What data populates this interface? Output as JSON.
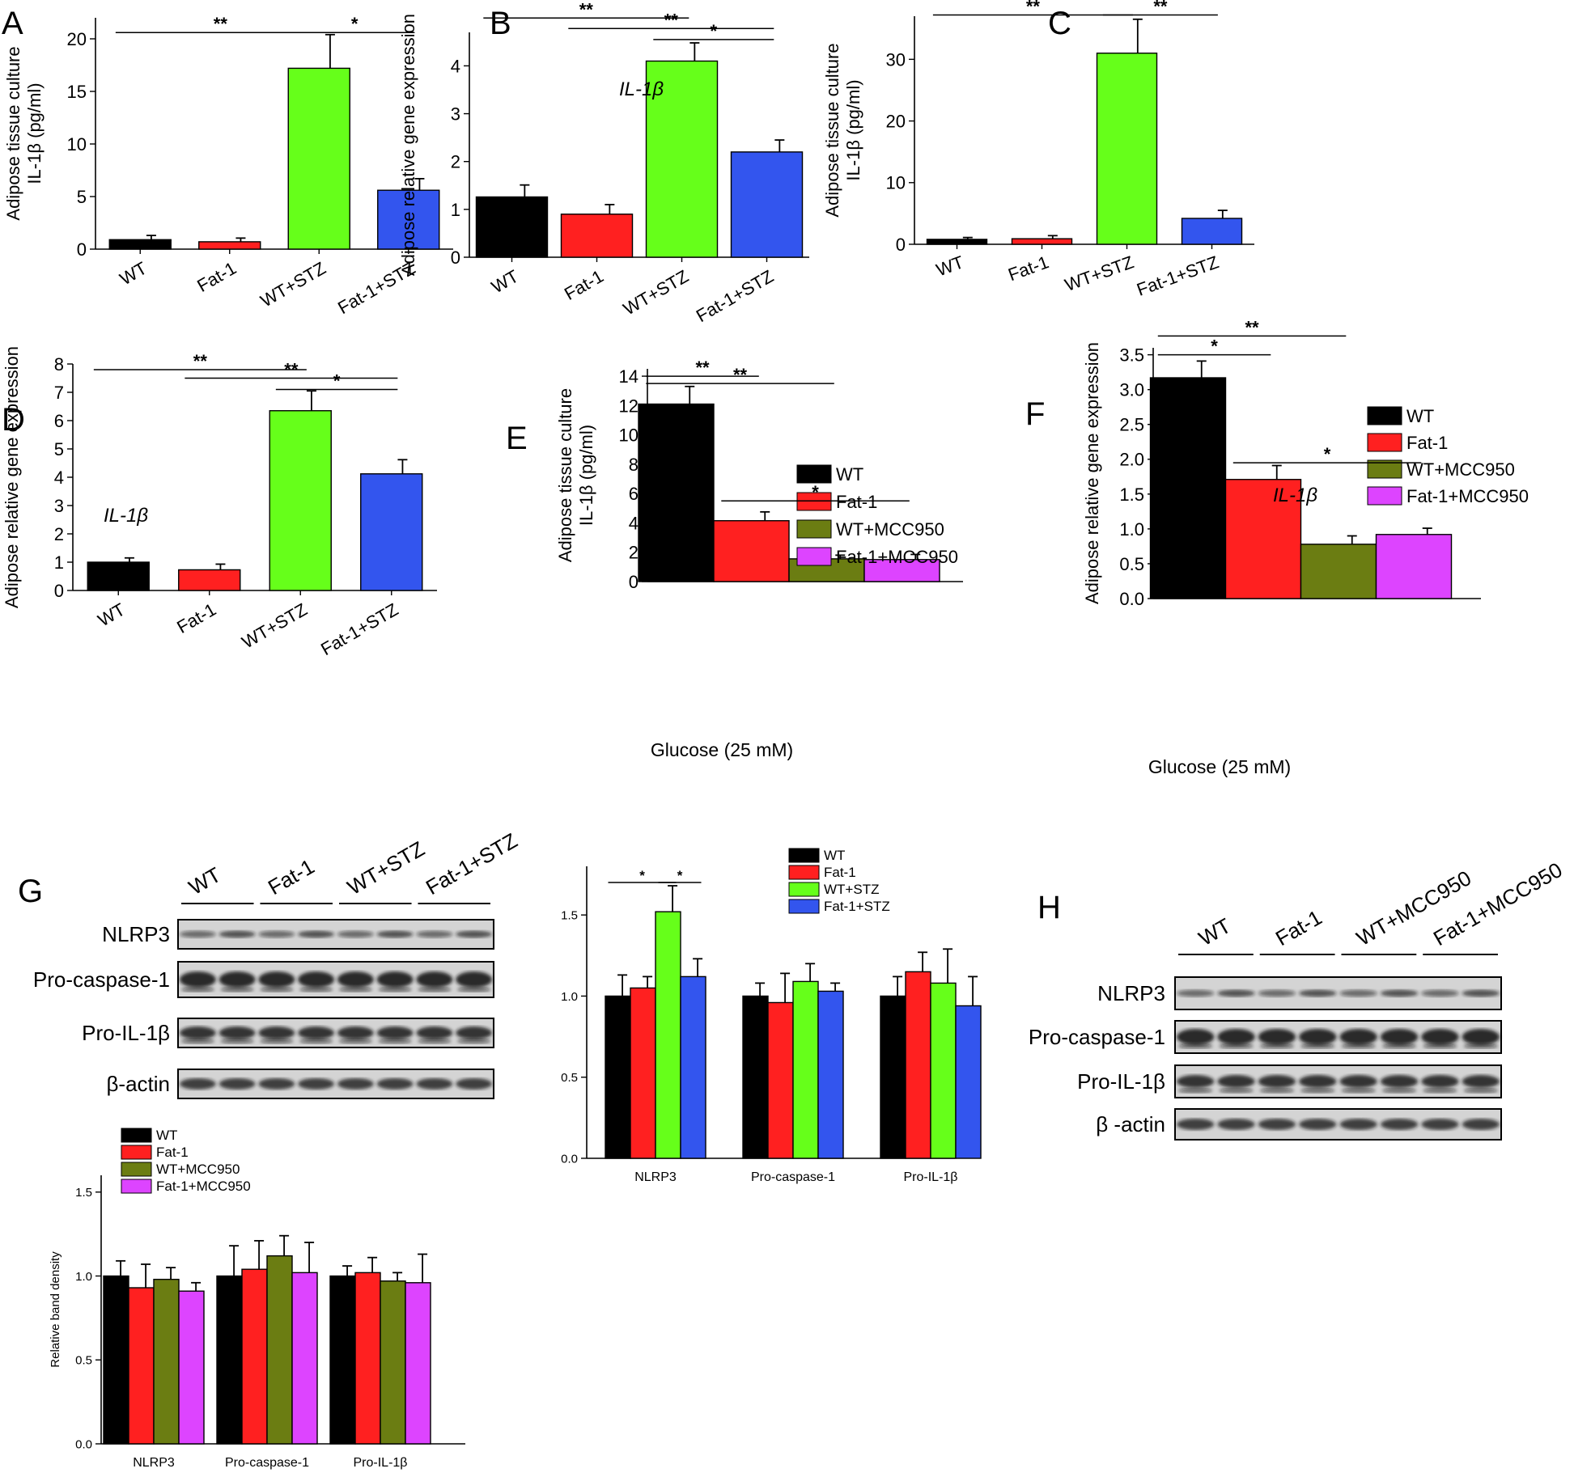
{
  "colors": {
    "WT": "#000000",
    "Fat-1": "#ff2020",
    "STZ": "#66ff1a",
    "Fat1STZ": "#3355ee",
    "MCC": "#6b7d12",
    "Fat1MCC": "#dd44ff"
  },
  "panels": {
    "A": "A",
    "B": "B",
    "C": "C",
    "D": "D",
    "E": "E",
    "F": "F",
    "G": "G",
    "H": "H"
  },
  "chart_data": [
    {
      "id": "A",
      "type": "bar",
      "ylabel": [
        "Adipose tissue culture",
        "IL-1β (pg/ml)"
      ],
      "ylim": [
        0,
        22
      ],
      "yticks": [
        0,
        5,
        10,
        15,
        20
      ],
      "categories": [
        "WT",
        "Fat-1",
        "WT+STZ",
        "Fat-1+STZ"
      ],
      "values": [
        0.9,
        0.7,
        17.2,
        5.6
      ],
      "errors": [
        0.4,
        0.35,
        3.2,
        1.1
      ],
      "colors": [
        "WT",
        "Fat-1",
        "STZ",
        "Fat1STZ"
      ],
      "signif": [
        {
          "from": 0,
          "to": 2,
          "y": 20.6,
          "label": "**"
        },
        {
          "from": 2,
          "to": 3,
          "y": 20.6,
          "label": "*"
        }
      ]
    },
    {
      "id": "B",
      "type": "bar",
      "ylabel": [
        "Adipose relative gene expression"
      ],
      "annotation": "IL-1β",
      "ylim": [
        0,
        4.7
      ],
      "yticks": [
        0,
        1,
        2,
        3,
        4
      ],
      "categories": [
        "WT",
        "Fat-1",
        "WT+STZ",
        "Fat-1+STZ"
      ],
      "values": [
        1.26,
        0.9,
        4.1,
        2.2
      ],
      "errors": [
        0.25,
        0.2,
        0.38,
        0.25
      ],
      "colors": [
        "WT",
        "Fat-1",
        "STZ",
        "Fat1STZ"
      ],
      "signif": [
        {
          "from": 0,
          "to": 2,
          "y": 5.0,
          "label": "**"
        },
        {
          "from": 1,
          "to": 3,
          "y": 4.78,
          "label": "**"
        },
        {
          "from": 2,
          "to": 3,
          "y": 4.55,
          "label": "*"
        }
      ]
    },
    {
      "id": "C",
      "type": "bar",
      "ylabel": [
        "Adipose tissue culture",
        "IL-1β (pg/ml)"
      ],
      "ylim": [
        0,
        37
      ],
      "yticks": [
        0,
        10,
        20,
        30
      ],
      "categories": [
        "WT",
        "Fat-1",
        "WT+STZ",
        "Fat-1+STZ"
      ],
      "values": [
        0.8,
        0.9,
        31.0,
        4.2
      ],
      "errors": [
        0.3,
        0.5,
        5.5,
        1.3
      ],
      "colors": [
        "WT",
        "Fat-1",
        "STZ",
        "Fat1STZ"
      ],
      "signif": [
        {
          "from": 0,
          "to": 2,
          "y": 37.2,
          "label": "**"
        },
        {
          "from": 2,
          "to": 3,
          "y": 37.2,
          "label": "**"
        }
      ]
    },
    {
      "id": "D",
      "type": "bar",
      "ylabel": [
        "Adipose relative gene expression"
      ],
      "annotation": "IL-1β",
      "ylim": [
        0,
        8
      ],
      "yticks": [
        0,
        1,
        2,
        3,
        4,
        5,
        6,
        7,
        8
      ],
      "categories": [
        "WT",
        "Fat-1",
        "WT+STZ",
        "Fat-1+STZ"
      ],
      "values": [
        1.0,
        0.73,
        6.35,
        4.12
      ],
      "errors": [
        0.15,
        0.2,
        0.7,
        0.5
      ],
      "colors": [
        "WT",
        "Fat-1",
        "STZ",
        "Fat1STZ"
      ],
      "signif": [
        {
          "from": 0,
          "to": 2,
          "y": 7.8,
          "label": "**"
        },
        {
          "from": 1,
          "to": 3,
          "y": 7.5,
          "label": "**"
        },
        {
          "from": 2,
          "to": 3,
          "y": 7.1,
          "label": "*"
        }
      ]
    },
    {
      "id": "E",
      "type": "bar",
      "ylabel": [
        "Adipose tissue culture",
        "IL-1β (pg/ml)"
      ],
      "xlabel": "Glucose (25 mM)",
      "ylim": [
        0,
        14.5
      ],
      "yticks": [
        0,
        2,
        4,
        6,
        8,
        10,
        12,
        14
      ],
      "categories": [
        "WT",
        "Fat-1",
        "WT+MCC950",
        "Fat-1+MCC950"
      ],
      "values": [
        12.1,
        4.15,
        1.55,
        1.5
      ],
      "errors": [
        1.2,
        0.6,
        0.25,
        0.35
      ],
      "colors": [
        "WT",
        "Fat-1",
        "MCC",
        "Fat1MCC"
      ],
      "legend": [
        "WT",
        "Fat-1",
        "WT+MCC950",
        "Fat-1+MCC950"
      ],
      "signif": [
        {
          "from": 0,
          "to": 1,
          "y": 14.0,
          "label": "**"
        },
        {
          "from": 0,
          "to": 2,
          "y": 13.5,
          "label": "**"
        },
        {
          "from": 1,
          "to": 3,
          "y": 5.5,
          "label": "*"
        }
      ]
    },
    {
      "id": "F",
      "type": "bar",
      "ylabel": [
        "Adipose relative gene expression"
      ],
      "annotation": "IL-1β",
      "xlabel": "Glucose (25 mM)",
      "ylim": [
        0,
        3.6
      ],
      "yticks": [
        0.0,
        0.5,
        1.0,
        1.5,
        2.0,
        2.5,
        3.0,
        3.5
      ],
      "categories": [
        "WT",
        "Fat-1",
        "WT+MCC950",
        "Fat-1+MCC950"
      ],
      "values": [
        3.17,
        1.71,
        0.78,
        0.92
      ],
      "errors": [
        0.24,
        0.2,
        0.12,
        0.09
      ],
      "colors": [
        "WT",
        "Fat-1",
        "MCC",
        "Fat1MCC"
      ],
      "legend": [
        "WT",
        "Fat-1",
        "WT+MCC950",
        "Fat-1+MCC950"
      ],
      "signif": [
        {
          "from": 0,
          "to": 1,
          "y": 3.5,
          "label": "*"
        },
        {
          "from": 0,
          "to": 2,
          "y": 3.77,
          "label": "**"
        },
        {
          "from": 1,
          "to": 3,
          "y": 1.95,
          "label": "*"
        }
      ]
    },
    {
      "id": "G-quant",
      "type": "bar",
      "ylim": [
        0,
        1.8
      ],
      "yticks": [
        0.0,
        0.5,
        1.0,
        1.5
      ],
      "categories": [
        "NLRP3",
        "Pro-caspase-1",
        "Pro-IL-1β"
      ],
      "series": [
        {
          "name": "WT",
          "values": [
            1.0,
            1.0,
            1.0
          ],
          "errors": [
            0.13,
            0.08,
            0.12
          ]
        },
        {
          "name": "Fat-1",
          "values": [
            1.05,
            0.96,
            1.15
          ],
          "errors": [
            0.07,
            0.18,
            0.12
          ]
        },
        {
          "name": "WT+STZ",
          "values": [
            1.52,
            1.09,
            1.08
          ],
          "errors": [
            0.16,
            0.11,
            0.21
          ]
        },
        {
          "name": "Fat-1+STZ",
          "values": [
            1.12,
            1.03,
            0.94
          ],
          "errors": [
            0.11,
            0.05,
            0.18
          ]
        }
      ],
      "colors": [
        "WT",
        "Fat-1",
        "STZ",
        "Fat1STZ"
      ],
      "signif": [
        {
          "from": [
            0,
            0
          ],
          "to": [
            0,
            2
          ],
          "y": 1.7,
          "label": "*"
        },
        {
          "from": [
            0,
            2
          ],
          "to": [
            0,
            3
          ],
          "y": 1.7,
          "label": "*"
        }
      ]
    },
    {
      "id": "H-quant",
      "type": "bar",
      "ylabel": [
        "Relative band density"
      ],
      "ylim": [
        0,
        1.6
      ],
      "yticks": [
        0.0,
        0.5,
        1.0,
        1.5
      ],
      "categories": [
        "NLRP3",
        "Pro-caspase-1",
        "Pro-IL-1β"
      ],
      "series": [
        {
          "name": "WT",
          "values": [
            1.0,
            1.0,
            1.0
          ],
          "errors": [
            0.09,
            0.18,
            0.06
          ]
        },
        {
          "name": "Fat-1",
          "values": [
            0.93,
            1.04,
            1.02
          ],
          "errors": [
            0.14,
            0.17,
            0.09
          ]
        },
        {
          "name": "WT+MCC950",
          "values": [
            0.98,
            1.12,
            0.97
          ],
          "errors": [
            0.07,
            0.12,
            0.05
          ]
        },
        {
          "name": "Fat-1+MCC950",
          "values": [
            0.91,
            1.02,
            0.96
          ],
          "errors": [
            0.05,
            0.18,
            0.17
          ]
        }
      ],
      "colors": [
        "WT",
        "Fat-1",
        "MCC",
        "Fat1MCC"
      ]
    }
  ],
  "blots": {
    "G": {
      "groups": [
        "WT",
        "Fat-1",
        "WT+STZ",
        "Fat-1+STZ"
      ],
      "rows": [
        "NLRP3",
        "Pro-caspase-1",
        "Pro-IL-1β",
        "β-actin"
      ]
    },
    "H": {
      "groups": [
        "WT",
        "Fat-1",
        "WT+MCC950",
        "Fat-1+MCC950"
      ],
      "rows": [
        "NLRP3",
        "Pro-caspase-1",
        "Pro-IL-1β",
        "β -actin"
      ]
    }
  }
}
